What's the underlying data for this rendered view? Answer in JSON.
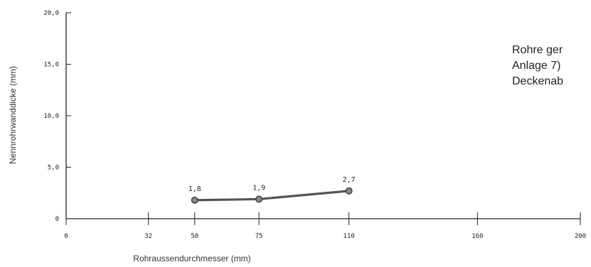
{
  "chart_data": {
    "type": "line",
    "title": "",
    "xlabel": "Rohraussendurchmesser (mm)",
    "ylabel": "Nennrohrwanddicke (mm)",
    "xlim": [
      0,
      200
    ],
    "ylim": [
      0,
      20
    ],
    "x_ticks": [
      0,
      32,
      50,
      75,
      110,
      160,
      200
    ],
    "x_tick_labels": [
      "0",
      "32",
      "50",
      "75",
      "110",
      "160",
      "200"
    ],
    "y_ticks": [
      0,
      5,
      10,
      15,
      20
    ],
    "y_tick_labels": [
      "0",
      "5,0",
      "10,0",
      "15,0",
      "20,0"
    ],
    "grid": false,
    "series": [
      {
        "x": [
          50,
          75,
          110
        ],
        "y": [
          1.8,
          1.9,
          2.7
        ],
        "labels": [
          "1,8",
          "1,9",
          "2,7"
        ],
        "color": "#555555"
      }
    ]
  },
  "annotation": {
    "lines": [
      "Rohre ger",
      "Anlage 7)",
      "Deckenab"
    ]
  }
}
